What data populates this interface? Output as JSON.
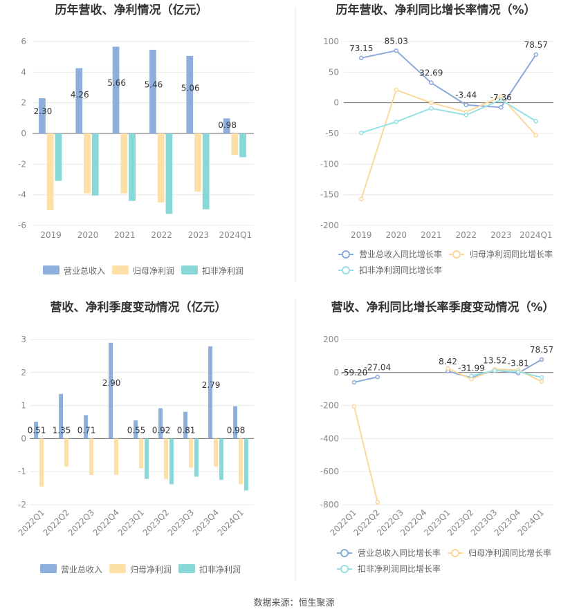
{
  "colors": {
    "revenue": "#8eaedb",
    "net_profit": "#fde0a6",
    "deducted_profit": "#88d8d8",
    "revenue_line": "#8aa8da",
    "net_line": "#fbd89a",
    "deducted_line": "#98e0e3",
    "grid": "#e8e8e8",
    "divider": "#e5e5e5"
  },
  "legend": {
    "revenue": "营业总收入",
    "net": "归母净利润",
    "deducted": "扣非净利润",
    "revenue_growth": "营业总收入同比增长率",
    "net_growth": "归母净利润同比增长率",
    "deducted_growth": "扣非净利润同比增长率"
  },
  "source": "数据来源：恒生聚源",
  "chart_data": [
    {
      "id": "annual-amount",
      "type": "bar",
      "title": "历年营收、净利情况（亿元）",
      "categories": [
        "2019",
        "2020",
        "2021",
        "2022",
        "2023",
        "2024Q1"
      ],
      "ylim": [
        -6,
        6
      ],
      "yticks": [
        -6,
        -4,
        -2,
        0,
        2,
        4,
        6
      ],
      "grid": true,
      "legend_position": "bottom",
      "series": [
        {
          "name": "营业总收入",
          "values": [
            2.3,
            4.26,
            5.66,
            5.46,
            5.06,
            0.98
          ]
        },
        {
          "name": "归母净利润",
          "values": [
            -5.0,
            -3.9,
            -3.9,
            -4.5,
            -3.8,
            -1.4
          ]
        },
        {
          "name": "扣非净利润",
          "values": [
            -3.1,
            -4.05,
            -4.4,
            -5.25,
            -4.95,
            -1.55
          ]
        }
      ],
      "data_labels": [
        "2.30",
        "4.26",
        "5.66",
        "5.46",
        "5.06",
        "0.98"
      ]
    },
    {
      "id": "annual-growth",
      "type": "line",
      "title": "历年营收、净利同比增长率情况（%）",
      "categories": [
        "2019",
        "2020",
        "2021",
        "2022",
        "2023",
        "2024Q1"
      ],
      "ylim": [
        -200,
        100
      ],
      "yticks": [
        -200,
        -150,
        -100,
        -50,
        0,
        50,
        100
      ],
      "grid": true,
      "legend_position": "bottom",
      "series": [
        {
          "name": "营业总收入同比增长率",
          "values": [
            73.15,
            85.03,
            32.69,
            -3.44,
            -7.36,
            78.57
          ]
        },
        {
          "name": "归母净利润同比增长率",
          "values": [
            -157,
            21,
            0,
            -15,
            10,
            -53
          ]
        },
        {
          "name": "扣非净利润同比增长率",
          "values": [
            -49,
            -31,
            -9,
            -20,
            5,
            -30
          ]
        }
      ],
      "data_labels": [
        "73.15",
        "85.03",
        "32.69",
        "-3.44",
        "-7.36",
        "78.57"
      ]
    },
    {
      "id": "quarterly-amount",
      "type": "bar",
      "title": "营收、净利季度变动情况（亿元）",
      "categories": [
        "2022Q1",
        "2022Q2",
        "2022Q3",
        "2022Q4",
        "2023Q1",
        "2023Q2",
        "2023Q3",
        "2023Q4",
        "2024Q1"
      ],
      "ylim": [
        -2,
        3
      ],
      "yticks": [
        -2,
        -1,
        0,
        1,
        2,
        3
      ],
      "grid": true,
      "legend_position": "bottom",
      "series": [
        {
          "name": "营业总收入",
          "values": [
            0.51,
            1.35,
            0.71,
            2.9,
            0.55,
            0.92,
            0.81,
            2.79,
            0.98
          ]
        },
        {
          "name": "归母净利润",
          "values": [
            -1.45,
            -0.85,
            -1.1,
            -1.1,
            -0.9,
            -1.22,
            -0.88,
            -0.85,
            -1.38
          ]
        },
        {
          "name": "扣非净利润",
          "values": [
            null,
            null,
            null,
            null,
            -1.22,
            -1.38,
            -1.15,
            -1.25,
            -1.57
          ]
        }
      ],
      "data_labels": [
        "0.51",
        "1.35",
        "0.71",
        "2.90",
        "0.55",
        "0.92",
        "0.81",
        "2.79",
        "0.98"
      ]
    },
    {
      "id": "quarterly-growth",
      "type": "line",
      "title": "营收、净利同比增长率季度变动情况（%）",
      "categories": [
        "2022Q1",
        "2022Q2",
        "2022Q3",
        "2022Q4",
        "2023Q1",
        "2023Q2",
        "2023Q3",
        "2023Q4",
        "2024Q1"
      ],
      "ylim": [
        -800,
        200
      ],
      "yticks": [
        -800,
        -600,
        -400,
        -200,
        0,
        200
      ],
      "grid": true,
      "legend_position": "bottom",
      "series": [
        {
          "name": "营业总收入同比增长率",
          "values": [
            -59.2,
            -27.04,
            null,
            null,
            8.42,
            -31.99,
            13.52,
            -3.81,
            78.57
          ]
        },
        {
          "name": "归母净利润同比增长率",
          "values": [
            -205,
            -785,
            null,
            null,
            25,
            -40,
            20,
            15,
            -55
          ]
        },
        {
          "name": "扣非净利润同比增长率",
          "values": [
            null,
            null,
            null,
            null,
            null,
            -20,
            12,
            5,
            -30
          ]
        }
      ],
      "data_labels": [
        "-59.20",
        "-27.04",
        "",
        "",
        "8.42",
        "-31.99",
        "13.52",
        "-3.81",
        "78.57"
      ]
    }
  ]
}
